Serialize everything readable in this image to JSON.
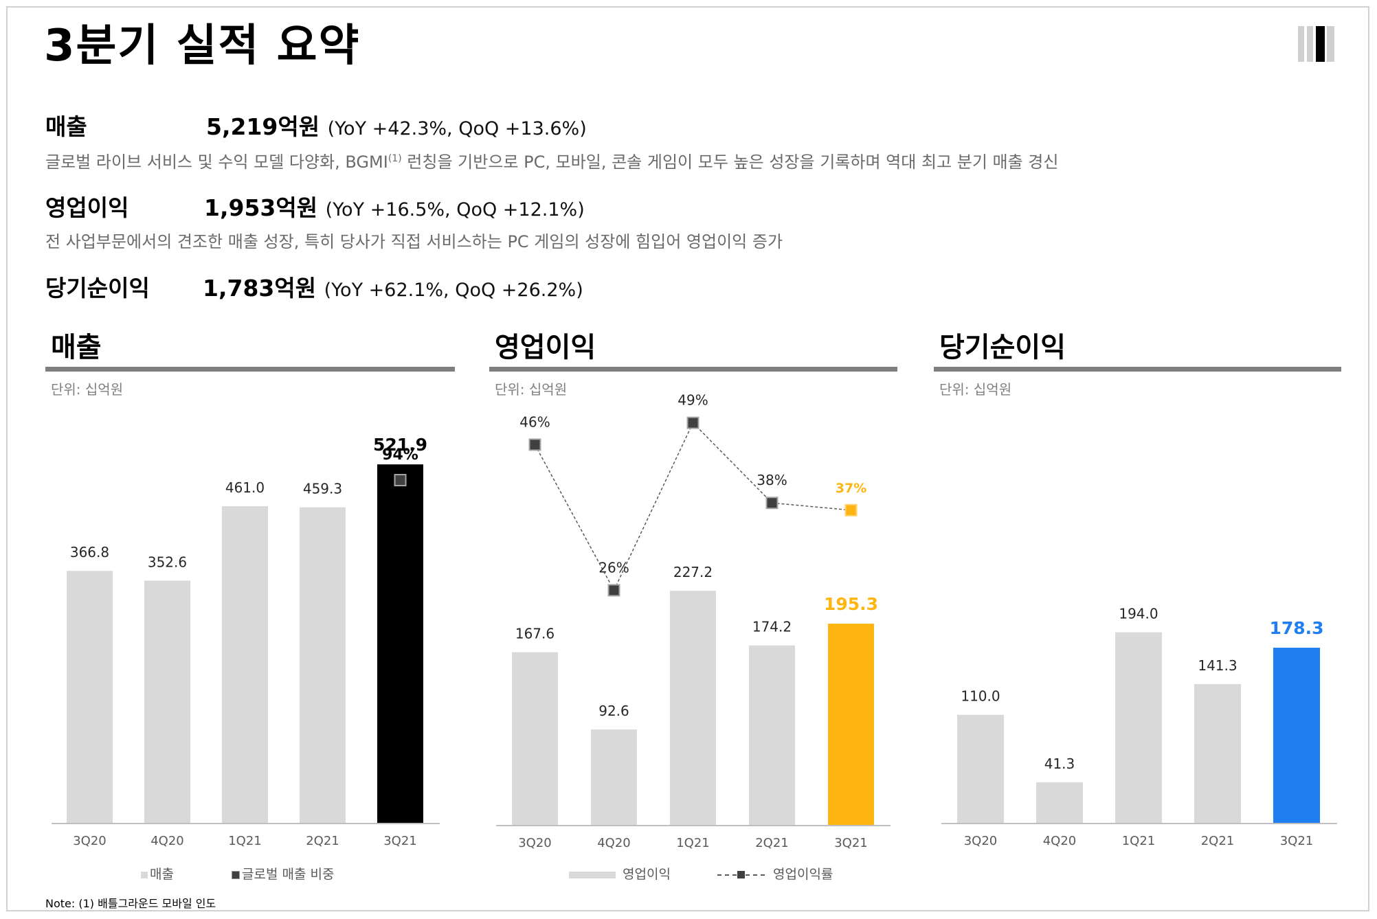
{
  "page": {
    "title": "3분기 실적 요약",
    "note": "Note: (1) 배틀그라운드 모바일 인도"
  },
  "summary": {
    "revenue": {
      "label": "매출",
      "value": "5,219억원",
      "delta": "(YoY +42.3%, QoQ +13.6%)",
      "desc_before": "글로벌 라이브 서비스 및 수익 모델 다양화, BGMI",
      "desc_sup": "(1)",
      "desc_after": " 런칭을 기반으로 PC, 모바일, 콘솔 게임이 모두 높은 성장을 기록하며 역대 최고 분기 매출 경신"
    },
    "operating_profit": {
      "label": "영업이익",
      "value": "1,953억원",
      "delta": "(YoY +16.5%, QoQ +12.1%)",
      "desc": "전 사업부문에서의 견조한 매출 성장, 특히 당사가 직접 서비스하는 PC 게임의 성장에 힘입어 영업이익 증가"
    },
    "net_income": {
      "label": "당기순이익",
      "value": "1,783억원",
      "delta": "(YoY +62.1%, QoQ +26.2%)"
    }
  },
  "colors": {
    "bar_default": "#d9d9d9",
    "revenue_highlight": "#000000",
    "op_highlight": "#ffb511",
    "net_highlight": "#1e7ef2",
    "marker": "#404040",
    "rule": "#7f7f7f"
  },
  "chart_data": [
    {
      "type": "bar",
      "title": "매출",
      "unit_label": "단위: 십억원",
      "categories": [
        "3Q20",
        "4Q20",
        "1Q21",
        "2Q21",
        "3Q21"
      ],
      "values": [
        366.8,
        352.6,
        461.0,
        459.3,
        521.9
      ],
      "value_labels": [
        "366.8",
        "352.6",
        "461.0",
        "459.3",
        "521.9"
      ],
      "highlight_index": 4,
      "ylim": [
        0,
        600
      ],
      "overlay": {
        "name": "글로벌 매출 비중",
        "points": [
          {
            "index": 4,
            "value": 94,
            "label": "94%"
          }
        ],
        "ylim": [
          0,
          100
        ]
      },
      "legend": [
        "매출",
        "글로벌 매출 비중"
      ],
      "legend_position": "bottom"
    },
    {
      "type": "bar",
      "title": "영업이익",
      "unit_label": "단위: 십억원",
      "categories": [
        "3Q20",
        "4Q20",
        "1Q21",
        "2Q21",
        "3Q21"
      ],
      "values": [
        167.6,
        92.6,
        227.2,
        174.2,
        195.3
      ],
      "value_labels": [
        "167.6",
        "92.6",
        "227.2",
        "174.2",
        "195.3"
      ],
      "highlight_index": 4,
      "ylim": [
        0,
        420
      ],
      "line": {
        "name": "영업이익률",
        "values": [
          46,
          26,
          49,
          38,
          37
        ],
        "labels": [
          "46%",
          "26%",
          "49%",
          "38%",
          "37%"
        ],
        "ylim": [
          0,
          100
        ]
      },
      "legend": [
        "영업이익",
        "영업이익률"
      ],
      "legend_position": "bottom"
    },
    {
      "type": "bar",
      "title": "당기순이익",
      "unit_label": "단위: 십억원",
      "categories": [
        "3Q20",
        "4Q20",
        "1Q21",
        "2Q21",
        "3Q21"
      ],
      "values": [
        110.0,
        41.3,
        194.0,
        141.3,
        178.3
      ],
      "value_labels": [
        "110.0",
        "41.3",
        "194.0",
        "141.3",
        "178.3"
      ],
      "highlight_index": 4,
      "ylim": [
        0,
        300
      ]
    }
  ]
}
